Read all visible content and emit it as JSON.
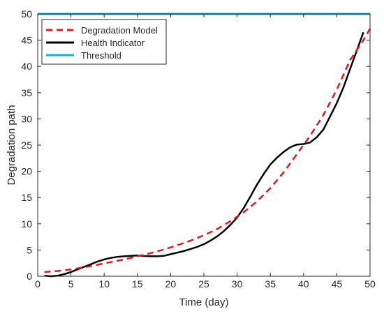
{
  "chart_data": {
    "type": "line",
    "title": "",
    "xlabel": "Time (day)",
    "ylabel": "Degradation path",
    "xlim": [
      0,
      50
    ],
    "ylim": [
      0,
      50
    ],
    "xticks": [
      0,
      5,
      10,
      15,
      20,
      25,
      30,
      35,
      40,
      45,
      50
    ],
    "yticks": [
      0,
      5,
      10,
      15,
      20,
      25,
      30,
      35,
      40,
      45,
      50
    ],
    "grid": false,
    "legend_position": "top-left",
    "series": [
      {
        "name": "Degradation Model",
        "style": "dashed",
        "color": "#e0191e",
        "x": [
          1,
          3,
          5,
          7,
          9,
          11,
          13,
          15,
          17,
          19,
          21,
          23,
          25,
          27,
          29,
          31,
          33,
          35,
          37,
          39,
          41,
          43,
          45,
          47,
          49,
          50
        ],
        "y": [
          0.8,
          1.0,
          1.3,
          1.7,
          2.2,
          2.7,
          3.2,
          3.8,
          4.4,
          5.1,
          5.9,
          6.8,
          7.8,
          9.0,
          10.5,
          12.2,
          14.3,
          16.8,
          19.8,
          23.3,
          26.8,
          30.8,
          35.6,
          41.2,
          45.0,
          47.2
        ]
      },
      {
        "name": "Health Indicator",
        "style": "solid",
        "color": "#000000",
        "x": [
          1,
          2,
          3,
          4,
          5,
          6,
          7,
          8,
          9,
          10,
          11,
          12,
          13,
          14,
          15,
          16,
          17,
          18,
          19,
          20,
          21,
          22,
          23,
          24,
          25,
          26,
          27,
          28,
          29,
          30,
          31,
          32,
          33,
          34,
          35,
          36,
          37,
          38,
          39,
          40,
          41,
          42,
          43,
          44,
          45,
          46,
          47,
          48,
          49
        ],
        "y": [
          0.1,
          0.0,
          0.1,
          0.4,
          0.8,
          1.3,
          1.8,
          2.3,
          2.8,
          3.2,
          3.5,
          3.7,
          3.8,
          3.9,
          3.95,
          3.85,
          3.8,
          3.8,
          3.9,
          4.2,
          4.5,
          4.8,
          5.2,
          5.6,
          6.1,
          6.8,
          7.6,
          8.6,
          9.8,
          11.2,
          13.0,
          15.2,
          17.5,
          19.5,
          21.3,
          22.6,
          23.7,
          24.6,
          25.1,
          25.2,
          25.5,
          26.5,
          28.0,
          30.5,
          33.0,
          36.0,
          39.5,
          43.0,
          46.5
        ]
      },
      {
        "name": "Threshold",
        "style": "solid",
        "color": "#19b2e0",
        "x": [
          0,
          50
        ],
        "y": [
          50,
          50
        ]
      }
    ]
  }
}
